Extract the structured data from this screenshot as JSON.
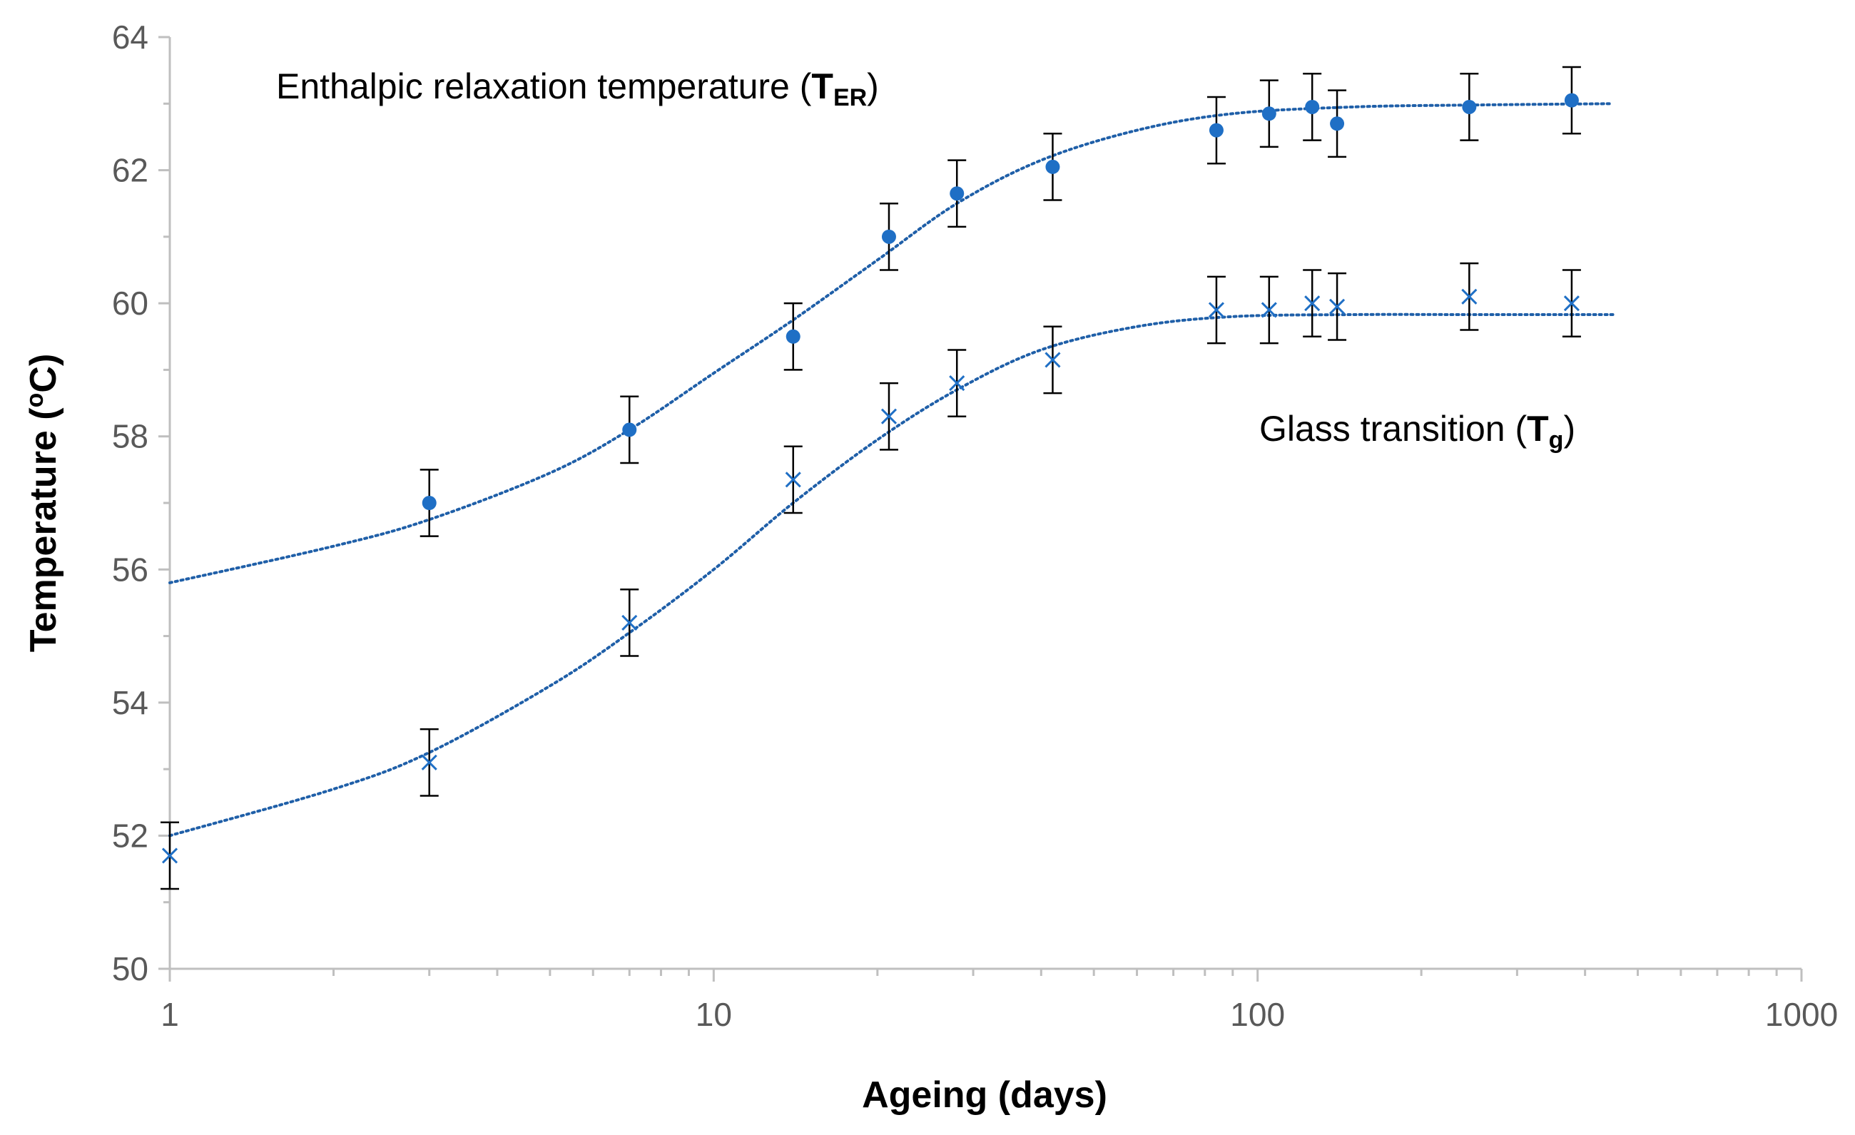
{
  "chart_data": {
    "type": "scatter",
    "xscale": "log",
    "xlabel": "Ageing (days)",
    "ylabel_text": "Temperature (",
    "ylabel_sup": "o",
    "ylabel_unit": "C)",
    "xlim": [
      1,
      1000
    ],
    "ylim": [
      50,
      64
    ],
    "x_ticks": [
      1,
      10,
      100,
      1000
    ],
    "x_tick_labels": [
      "1",
      "10",
      "100",
      "1000"
    ],
    "y_ticks": [
      50,
      52,
      54,
      56,
      58,
      60,
      62,
      64
    ],
    "y_tick_labels": [
      "50",
      "52",
      "54",
      "56",
      "58",
      "60",
      "62",
      "64"
    ],
    "grid": false,
    "colors": {
      "marker": "#1f6fc5",
      "trend": "#1f5fa8",
      "axis": "#bfbfbf",
      "errorbar": "#000000"
    },
    "series": [
      {
        "name": "Enthalpic relaxation temperature",
        "label_text": "Enthalpic relaxation temperature (",
        "label_symbol": "T",
        "label_sub": "ER",
        "label_close": ")",
        "marker": "circle",
        "error": 0.5,
        "x": [
          3,
          7,
          14,
          21,
          28,
          42,
          84,
          105,
          126,
          140,
          245,
          378
        ],
        "y": [
          57.0,
          58.1,
          59.5,
          61.0,
          61.65,
          62.05,
          62.6,
          62.85,
          62.95,
          62.7,
          62.95,
          63.05
        ],
        "trend": [
          [
            1,
            55.8
          ],
          [
            2,
            56.35
          ],
          [
            3,
            56.75
          ],
          [
            5,
            57.45
          ],
          [
            7,
            58.1
          ],
          [
            10,
            58.95
          ],
          [
            14,
            59.75
          ],
          [
            20,
            60.65
          ],
          [
            28,
            61.5
          ],
          [
            40,
            62.15
          ],
          [
            60,
            62.6
          ],
          [
            90,
            62.85
          ],
          [
            150,
            62.95
          ],
          [
            250,
            62.98
          ],
          [
            450,
            63.0
          ]
        ]
      },
      {
        "name": "Glass transition",
        "label_text": "Glass transition (",
        "label_symbol": "T",
        "label_sub": "g",
        "label_close": ")",
        "marker": "x",
        "error": 0.5,
        "x": [
          1,
          3,
          7,
          14,
          21,
          28,
          42,
          84,
          105,
          126,
          140,
          245,
          378
        ],
        "y": [
          51.7,
          53.1,
          55.2,
          57.35,
          58.3,
          58.8,
          59.15,
          59.9,
          59.9,
          60.0,
          59.95,
          60.1,
          60.0
        ],
        "trend": [
          [
            1,
            52.0
          ],
          [
            2,
            52.7
          ],
          [
            3,
            53.25
          ],
          [
            5,
            54.25
          ],
          [
            7,
            55.05
          ],
          [
            10,
            56.0
          ],
          [
            14,
            57.0
          ],
          [
            20,
            57.95
          ],
          [
            28,
            58.7
          ],
          [
            40,
            59.3
          ],
          [
            60,
            59.65
          ],
          [
            90,
            59.8
          ],
          [
            150,
            59.83
          ],
          [
            250,
            59.83
          ],
          [
            450,
            59.83
          ]
        ]
      }
    ]
  }
}
